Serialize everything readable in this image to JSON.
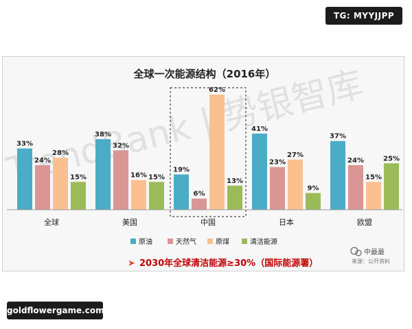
{
  "overlay": {
    "top_badge": "TG: MYYJJPP",
    "bottom_badge": "goldflowergame.com",
    "watermark": "TrendBank | 势银智库",
    "source_logo": "中最最",
    "source_note": "来源：公开资料"
  },
  "footnote": {
    "arrow": "➤",
    "text": "2030年全球清洁能源≥30%（国际能源署）"
  },
  "colors": {
    "series": [
      "#4bacc6",
      "#d99694",
      "#fac090",
      "#9bbb59"
    ],
    "highlight_border": "#444444",
    "footnote_text": "#c00000",
    "footnote_arrow": "#e8443a"
  },
  "chart_data": {
    "type": "bar",
    "title": "全球一次能源结构（2016年）",
    "categories": [
      "全球",
      "美国",
      "中国",
      "日本",
      "欧盟"
    ],
    "highlight_category": "中国",
    "ylim": [
      0,
      65
    ],
    "grid": false,
    "legend_position": "bottom-center",
    "value_suffix": "%",
    "series": [
      {
        "name": "原油",
        "values": [
          33,
          38,
          19,
          41,
          37
        ]
      },
      {
        "name": "天然气",
        "values": [
          24,
          32,
          6,
          23,
          24
        ]
      },
      {
        "name": "原煤",
        "values": [
          28,
          16,
          62,
          27,
          15
        ]
      },
      {
        "name": "清洁能源",
        "values": [
          15,
          15,
          13,
          9,
          25
        ]
      }
    ]
  }
}
